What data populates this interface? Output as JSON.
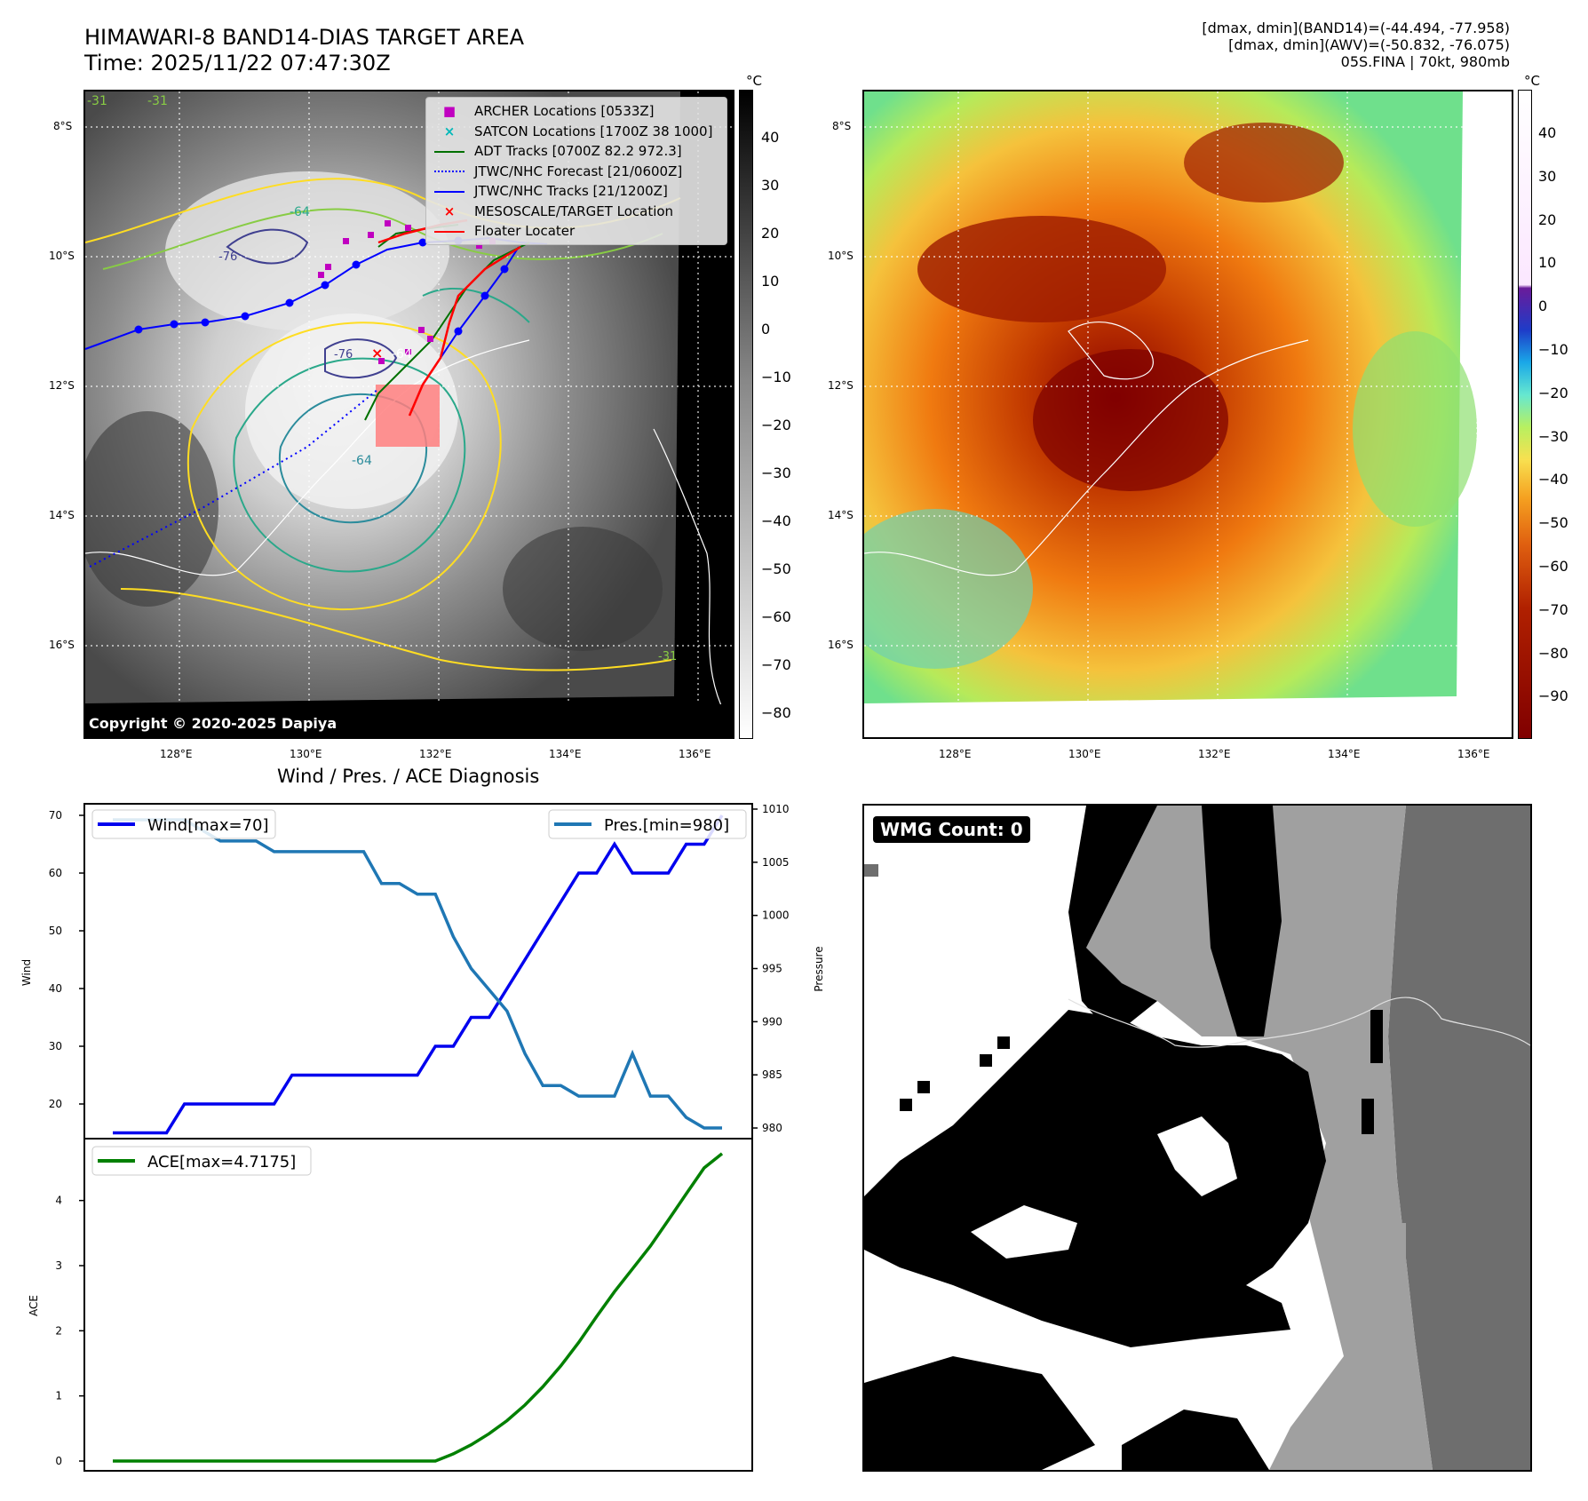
{
  "header": {
    "title_line1": "HIMAWARI-8 BAND14-DIAS TARGET AREA",
    "title_line2": "Time: 2025/11/22 07:47:30Z",
    "right_line1": "[dmax, dmin](BAND14)=(-44.494, -77.958)",
    "right_line2": "[dmax, dmin](AWV)=(-50.832, -76.075)",
    "right_line3": "05S.FINA | 70kt, 980mb"
  },
  "map": {
    "lat_labels": [
      "8°S",
      "10°S",
      "12°S",
      "14°S",
      "16°S"
    ],
    "lon_labels": [
      "128°E",
      "130°E",
      "132°E",
      "134°E",
      "136°E"
    ],
    "copyright": "Copyright © 2020-2025 Dapiya",
    "contour_labels": [
      "-31",
      "-31",
      "-64",
      "-64",
      "-64",
      "-76",
      "-76",
      "-31"
    ],
    "legend": [
      {
        "label": "ARCHER Locations [0533Z]",
        "color": "#c000c0",
        "marker": "square"
      },
      {
        "label": "SATCON Locations [1700Z 38 1000]",
        "color": "#00b8b8",
        "marker": "x"
      },
      {
        "label": "ADT Tracks [0700Z 82.2 972.3]",
        "color": "#007000",
        "marker": "line"
      },
      {
        "label": "JTWC/NHC Forecast [21/0600Z]",
        "color": "#0000ff",
        "marker": "dotted"
      },
      {
        "label": "JTWC/NHC Tracks [21/1200Z]",
        "color": "#0000ff",
        "marker": "line-dot"
      },
      {
        "label": "MESOSCALE/TARGET Location",
        "color": "#ff0000",
        "marker": "x"
      },
      {
        "label": "Floater Locater",
        "color": "#ff0000",
        "marker": "line"
      }
    ]
  },
  "colorbar_gray": {
    "unit": "°C",
    "ticks": [
      "40",
      "30",
      "20",
      "10",
      "0",
      "−10",
      "−20",
      "−30",
      "−40",
      "−50",
      "−60",
      "−70",
      "−80"
    ]
  },
  "colorbar_color": {
    "unit": "°C",
    "ticks": [
      "40",
      "30",
      "20",
      "10",
      "0",
      "−10",
      "−20",
      "−30",
      "−40",
      "−50",
      "−60",
      "−70",
      "−80",
      "−90"
    ]
  },
  "wmg": {
    "label": "WMG Count: 0"
  },
  "colors": {
    "wind": "#0000ee",
    "pressure": "#1f77b4",
    "ace": "#008000"
  },
  "chart_data": [
    {
      "type": "line",
      "title": "Wind / Pres. / ACE Diagnosis",
      "ylabel": "Wind",
      "y2label": "Pressure",
      "ylim": [
        14,
        72
      ],
      "y2lim": [
        979,
        1010.5
      ],
      "yticks": [
        20,
        30,
        40,
        50,
        60,
        70
      ],
      "y2ticks": [
        980,
        985,
        990,
        995,
        1000,
        1005,
        1010
      ],
      "x": [
        0,
        1,
        2,
        3,
        4,
        5,
        6,
        7,
        8,
        9,
        10,
        11,
        12,
        13,
        14,
        15,
        16,
        17,
        18,
        19,
        20,
        21,
        22,
        23,
        24,
        25,
        26,
        27,
        28,
        29,
        30,
        31,
        32,
        33,
        34
      ],
      "series": [
        {
          "name": "Wind[max=70]",
          "axis": "left",
          "values": [
            15,
            15,
            15,
            15,
            20,
            20,
            20,
            20,
            20,
            20,
            25,
            25,
            25,
            25,
            25,
            25,
            25,
            25,
            30,
            30,
            35,
            35,
            40,
            45,
            50,
            55,
            60,
            60,
            65,
            60,
            60,
            60,
            65,
            65,
            70
          ]
        },
        {
          "name": "Pres.[min=980]",
          "axis": "right",
          "values": [
            1009,
            1009,
            1009,
            1009,
            1009,
            1008,
            1007,
            1007,
            1007,
            1006,
            1006,
            1006,
            1006,
            1006,
            1006,
            1003,
            1003,
            1002,
            1002,
            998,
            995,
            993,
            991,
            987,
            984,
            984,
            983,
            983,
            983,
            987,
            983,
            983,
            981,
            980,
            980
          ]
        }
      ]
    },
    {
      "type": "line",
      "ylabel": "ACE",
      "ylim": [
        -0.15,
        4.95
      ],
      "yticks": [
        0,
        1,
        2,
        3,
        4
      ],
      "x": [
        0,
        1,
        2,
        3,
        4,
        5,
        6,
        7,
        8,
        9,
        10,
        11,
        12,
        13,
        14,
        15,
        16,
        17,
        18,
        19,
        20,
        21,
        22,
        23,
        24,
        25,
        26,
        27,
        28,
        29,
        30,
        31,
        32,
        33,
        34
      ],
      "series": [
        {
          "name": "ACE[max=4.7175]",
          "values": [
            0,
            0,
            0,
            0,
            0,
            0,
            0,
            0,
            0,
            0,
            0,
            0,
            0,
            0,
            0,
            0,
            0,
            0,
            0,
            0.11,
            0.25,
            0.42,
            0.62,
            0.86,
            1.14,
            1.46,
            1.82,
            2.22,
            2.6,
            2.95,
            3.3,
            3.7,
            4.1,
            4.5,
            4.72
          ]
        }
      ]
    }
  ]
}
